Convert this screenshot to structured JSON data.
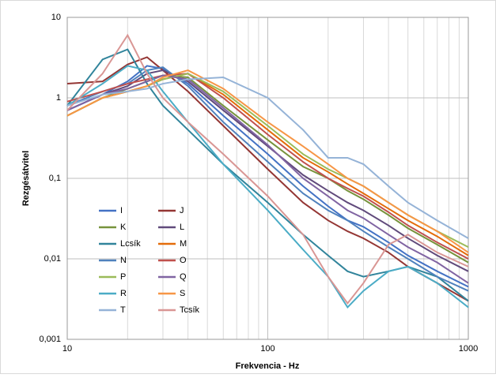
{
  "chart_data": {
    "type": "line",
    "log_x": true,
    "log_y": true,
    "grid": true,
    "x_label": "Frekvencia  -  Hz",
    "y_label": "Rezgésátvitel",
    "xlim": [
      10,
      1000
    ],
    "ylim": [
      0.001,
      10
    ],
    "xticks": [
      10,
      100,
      1000
    ],
    "xminorticks": [
      20,
      30,
      40,
      50,
      60,
      70,
      80,
      90,
      200,
      300,
      400,
      500,
      600,
      700,
      800,
      900
    ],
    "yticks": [
      {
        "value": 0.001,
        "label": "0,001"
      },
      {
        "value": 0.01,
        "label": "0,01"
      },
      {
        "value": 0.1,
        "label": "0,1"
      },
      1,
      10
    ],
    "x": [
      10,
      15,
      20,
      25,
      30,
      40,
      60,
      100,
      150,
      200,
      250,
      300,
      400,
      500,
      700,
      1000
    ],
    "series": [
      {
        "name": "I",
        "color": "#4472c4",
        "values": [
          0.7,
          1.1,
          1.6,
          2.5,
          2.3,
          1.5,
          0.6,
          0.2,
          0.08,
          0.045,
          0.03,
          0.025,
          0.016,
          0.011,
          0.007,
          0.0045
        ]
      },
      {
        "name": "J",
        "color": "#943634",
        "values": [
          1.5,
          1.6,
          2.6,
          3.2,
          2.2,
          1.2,
          0.45,
          0.13,
          0.05,
          0.03,
          0.022,
          0.018,
          0.012,
          0.008,
          0.005,
          0.003
        ]
      },
      {
        "name": "K",
        "color": "#77933c",
        "values": [
          0.6,
          1.0,
          1.3,
          1.6,
          1.9,
          1.8,
          0.8,
          0.3,
          0.14,
          0.1,
          0.07,
          0.055,
          0.035,
          0.024,
          0.015,
          0.009
        ]
      },
      {
        "name": "L",
        "color": "#604a7b",
        "values": [
          0.7,
          1.1,
          1.4,
          2.0,
          2.2,
          1.6,
          0.7,
          0.25,
          0.11,
          0.07,
          0.05,
          0.04,
          0.026,
          0.018,
          0.011,
          0.007
        ]
      },
      {
        "name": "Lcsík",
        "color": "#31849b",
        "values": [
          0.8,
          3.0,
          4.0,
          1.5,
          0.8,
          0.4,
          0.15,
          0.05,
          0.02,
          0.011,
          0.007,
          0.006,
          0.007,
          0.008,
          0.006,
          0.003
        ]
      },
      {
        "name": "M",
        "color": "#e46c0a",
        "values": [
          0.6,
          1.0,
          1.2,
          1.4,
          1.7,
          2.0,
          1.1,
          0.4,
          0.18,
          0.12,
          0.085,
          0.065,
          0.042,
          0.03,
          0.019,
          0.011
        ]
      },
      {
        "name": "N",
        "color": "#4f81bd",
        "values": [
          0.8,
          1.2,
          1.5,
          2.2,
          2.4,
          1.4,
          0.5,
          0.16,
          0.065,
          0.04,
          0.03,
          0.022,
          0.014,
          0.01,
          0.006,
          0.004
        ]
      },
      {
        "name": "O",
        "color": "#c0504d",
        "values": [
          0.9,
          1.2,
          1.5,
          1.7,
          1.9,
          2.0,
          1.0,
          0.35,
          0.16,
          0.1,
          0.075,
          0.06,
          0.038,
          0.026,
          0.016,
          0.01
        ]
      },
      {
        "name": "P",
        "color": "#9bbb59",
        "values": [
          0.6,
          1.0,
          1.2,
          1.4,
          1.7,
          2.0,
          1.2,
          0.45,
          0.2,
          0.13,
          0.1,
          0.08,
          0.05,
          0.035,
          0.022,
          0.014
        ]
      },
      {
        "name": "Q",
        "color": "#8064a2",
        "values": [
          0.7,
          1.1,
          1.3,
          1.6,
          1.9,
          1.7,
          0.75,
          0.26,
          0.1,
          0.06,
          0.04,
          0.032,
          0.02,
          0.014,
          0.009,
          0.005
        ]
      },
      {
        "name": "R",
        "color": "#4bacc6",
        "values": [
          0.8,
          1.5,
          2.5,
          2.2,
          1.2,
          0.5,
          0.15,
          0.04,
          0.013,
          0.006,
          0.0025,
          0.004,
          0.007,
          0.008,
          0.005,
          0.0025
        ]
      },
      {
        "name": "S",
        "color": "#f79646",
        "values": [
          0.6,
          1.0,
          1.2,
          1.4,
          1.8,
          2.2,
          1.3,
          0.5,
          0.25,
          0.15,
          0.1,
          0.08,
          0.05,
          0.035,
          0.022,
          0.012
        ]
      },
      {
        "name": "T",
        "color": "#95b3d7",
        "values": [
          0.8,
          1.1,
          1.2,
          1.3,
          1.5,
          1.7,
          1.8,
          1.0,
          0.4,
          0.18,
          0.18,
          0.15,
          0.08,
          0.05,
          0.03,
          0.018
        ]
      },
      {
        "name": "Tcsík",
        "color": "#d99694",
        "values": [
          0.7,
          2.0,
          6.0,
          2.0,
          1.0,
          0.5,
          0.2,
          0.06,
          0.02,
          0.006,
          0.0028,
          0.005,
          0.015,
          0.02,
          0.012,
          0.008
        ]
      }
    ]
  }
}
